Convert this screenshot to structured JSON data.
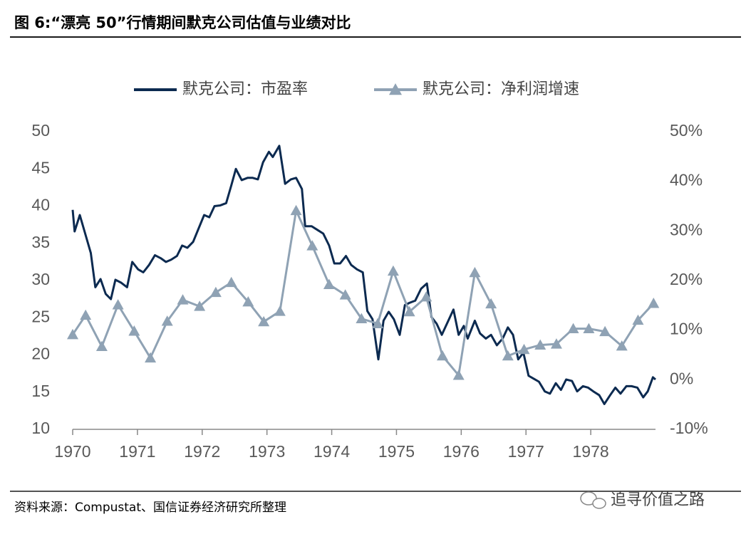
{
  "chart_data": {
    "type": "line",
    "title": "图 6:“漂亮 50”行情期间默克公司估值与业绩对比",
    "source": "资料来源：Compustat、国信证券经济研究所整理",
    "watermark": "追寻价值之路",
    "xlim": [
      1970,
      1979
    ],
    "xticks": [
      1970,
      1971,
      1972,
      1973,
      1974,
      1975,
      1976,
      1977,
      1978
    ],
    "ylim": [
      10,
      50
    ],
    "yticks": [
      10,
      15,
      20,
      25,
      30,
      35,
      40,
      45,
      50
    ],
    "y2lim": [
      -10,
      50
    ],
    "y2ticks": [
      {
        "value": -10,
        "label": "-10%"
      },
      {
        "value": 0,
        "label": "0%"
      },
      {
        "value": 10,
        "label": "10%"
      },
      {
        "value": 20,
        "label": "20%"
      },
      {
        "value": 30,
        "label": "30%"
      },
      {
        "value": 40,
        "label": "40%"
      },
      {
        "value": 50,
        "label": "50%"
      }
    ],
    "series": [
      {
        "name": "默克公司：市盈率",
        "color": "#0c2a50",
        "axis": "y",
        "x": [
          1970.0,
          1970.03,
          1970.11,
          1970.2,
          1970.28,
          1970.35,
          1970.43,
          1970.51,
          1970.59,
          1970.66,
          1970.75,
          1970.84,
          1970.92,
          1971.01,
          1971.09,
          1971.18,
          1971.27,
          1971.36,
          1971.44,
          1971.52,
          1971.61,
          1971.69,
          1971.77,
          1971.86,
          1971.94,
          1972.03,
          1972.11,
          1972.19,
          1972.28,
          1972.37,
          1972.45,
          1972.52,
          1972.61,
          1972.7,
          1972.78,
          1972.86,
          1972.94,
          1973.03,
          1973.09,
          1973.19,
          1973.28,
          1973.37,
          1973.45,
          1973.54,
          1973.59,
          1973.69,
          1973.78,
          1973.87,
          1973.96,
          1974.04,
          1974.13,
          1974.22,
          1974.3,
          1974.39,
          1974.48,
          1974.55,
          1974.63,
          1974.72,
          1974.8,
          1974.88,
          1974.96,
          1975.05,
          1975.13,
          1975.2,
          1975.29,
          1975.38,
          1975.47,
          1975.54,
          1975.62,
          1975.7,
          1975.79,
          1975.88,
          1975.96,
          1976.04,
          1976.1,
          1976.21,
          1976.29,
          1976.38,
          1976.46,
          1976.55,
          1976.64,
          1976.72,
          1976.8,
          1976.88,
          1976.96,
          1977.04,
          1977.12,
          1977.2,
          1977.29,
          1977.37,
          1977.46,
          1977.54,
          1977.62,
          1977.71,
          1977.79,
          1977.88,
          1977.96,
          1978.04,
          1978.13,
          1978.21,
          1978.3,
          1978.38,
          1978.46,
          1978.55,
          1978.63,
          1978.72,
          1978.81,
          1978.88,
          1978.96,
          1979.0
        ],
        "values": [
          39.5,
          36.6,
          38.8,
          36.1,
          33.7,
          29.1,
          30.2,
          28.2,
          27.5,
          30.1,
          29.7,
          29.1,
          32.5,
          31.5,
          31.1,
          32.1,
          33.4,
          33.0,
          32.5,
          32.8,
          33.3,
          34.7,
          34.4,
          35.2,
          36.9,
          38.8,
          38.5,
          40.0,
          40.1,
          40.4,
          42.8,
          45.0,
          43.5,
          43.8,
          43.8,
          43.6,
          45.9,
          47.3,
          46.6,
          48.1,
          43.0,
          43.6,
          43.8,
          42.3,
          37.3,
          37.3,
          36.8,
          36.3,
          34.7,
          32.3,
          32.3,
          33.3,
          32.1,
          31.5,
          31.1,
          25.9,
          24.8,
          19.4,
          24.6,
          25.8,
          24.8,
          22.7,
          26.7,
          27.0,
          27.3,
          28.9,
          29.6,
          25.1,
          24.2,
          22.7,
          24.4,
          26.1,
          22.7,
          23.9,
          22.2,
          24.6,
          22.9,
          22.2,
          22.7,
          21.3,
          22.2,
          23.7,
          22.7,
          19.4,
          20.3,
          17.2,
          16.8,
          16.4,
          15.1,
          14.8,
          16.2,
          15.3,
          16.7,
          16.5,
          15.1,
          15.8,
          15.6,
          15.1,
          14.6,
          13.4,
          14.6,
          15.6,
          14.8,
          15.8,
          15.8,
          15.6,
          14.3,
          15.1,
          17.0,
          16.7
        ]
      },
      {
        "name": "默克公司：净利润增速",
        "color": "#8fa2b4",
        "axis": "y2",
        "marker": "triangle",
        "x": [
          1970.0,
          1970.2,
          1970.45,
          1970.7,
          1970.95,
          1971.2,
          1971.46,
          1971.7,
          1971.96,
          1972.21,
          1972.45,
          1972.71,
          1972.95,
          1973.2,
          1973.45,
          1973.7,
          1973.96,
          1974.21,
          1974.46,
          1974.71,
          1974.95,
          1975.2,
          1975.46,
          1975.71,
          1975.96,
          1976.21,
          1976.46,
          1976.72,
          1976.97,
          1977.22,
          1977.47,
          1977.73,
          1977.97,
          1978.22,
          1978.48,
          1978.73,
          1978.97
        ],
        "values": [
          9.1,
          13.0,
          6.7,
          15.1,
          9.8,
          4.4,
          11.8,
          16.1,
          14.8,
          17.6,
          19.6,
          15.7,
          11.7,
          13.8,
          34.1,
          27.0,
          19.2,
          17.1,
          12.3,
          11.3,
          21.9,
          13.7,
          16.7,
          4.8,
          0.9,
          21.6,
          15.3,
          4.8,
          6.1,
          7.0,
          7.2,
          10.3,
          10.3,
          9.7,
          6.8,
          12.0,
          15.4
        ]
      }
    ]
  }
}
